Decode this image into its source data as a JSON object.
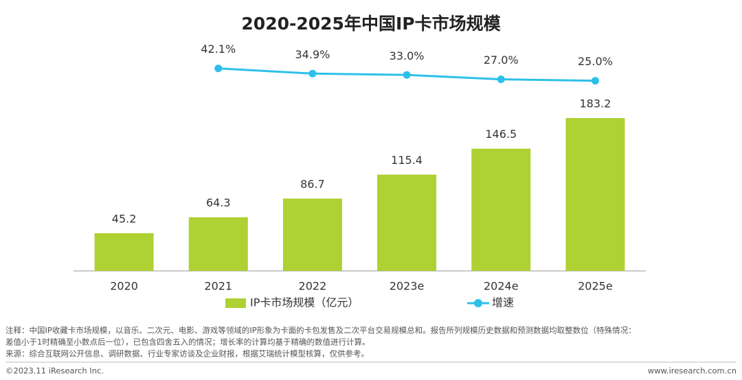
{
  "chart_data": {
    "type": "bar-line",
    "title": "2020-2025年中国IP卡市场规模",
    "categories": [
      "2020",
      "2021",
      "2022",
      "2023e",
      "2024e",
      "2025e"
    ],
    "ylim": [
      0,
      200
    ],
    "y2lim": [
      0,
      50
    ],
    "series": [
      {
        "name": "IP卡市场规模（亿元）",
        "type": "bar",
        "color": "#aed133",
        "values": [
          45.2,
          64.3,
          86.7,
          115.4,
          146.5,
          183.2
        ]
      },
      {
        "name": "增速",
        "type": "line",
        "axis": "y2",
        "color": "#2cc0ea",
        "values": [
          null,
          42.1,
          34.9,
          33.0,
          27.0,
          25.0
        ],
        "value_labels": [
          null,
          "42.1%",
          "34.9%",
          "33.0%",
          "27.0%",
          "25.0%"
        ]
      }
    ]
  },
  "footer": {
    "notes": [
      "注释：中国IP收藏卡市场规模，以音乐、二次元、电影、游戏等领域的IP形象为卡面的卡包发售及二次平台交易规模总和。报告所列规模历史数据和预测数据均取整数位（特殊情况：",
      "差值小于1时精确至小数点后一位），已包含四舍五入的情况；增长率的计算均基于精确的数值进行计算。",
      "来源：综合互联网公开信息、调研数据、行业专家访谈及企业财报，根据艾瑞统计模型核算，仅供参考。"
    ],
    "copyright": "©2023.11 iResearch Inc.",
    "url": "www.iresearch.com.cn"
  }
}
